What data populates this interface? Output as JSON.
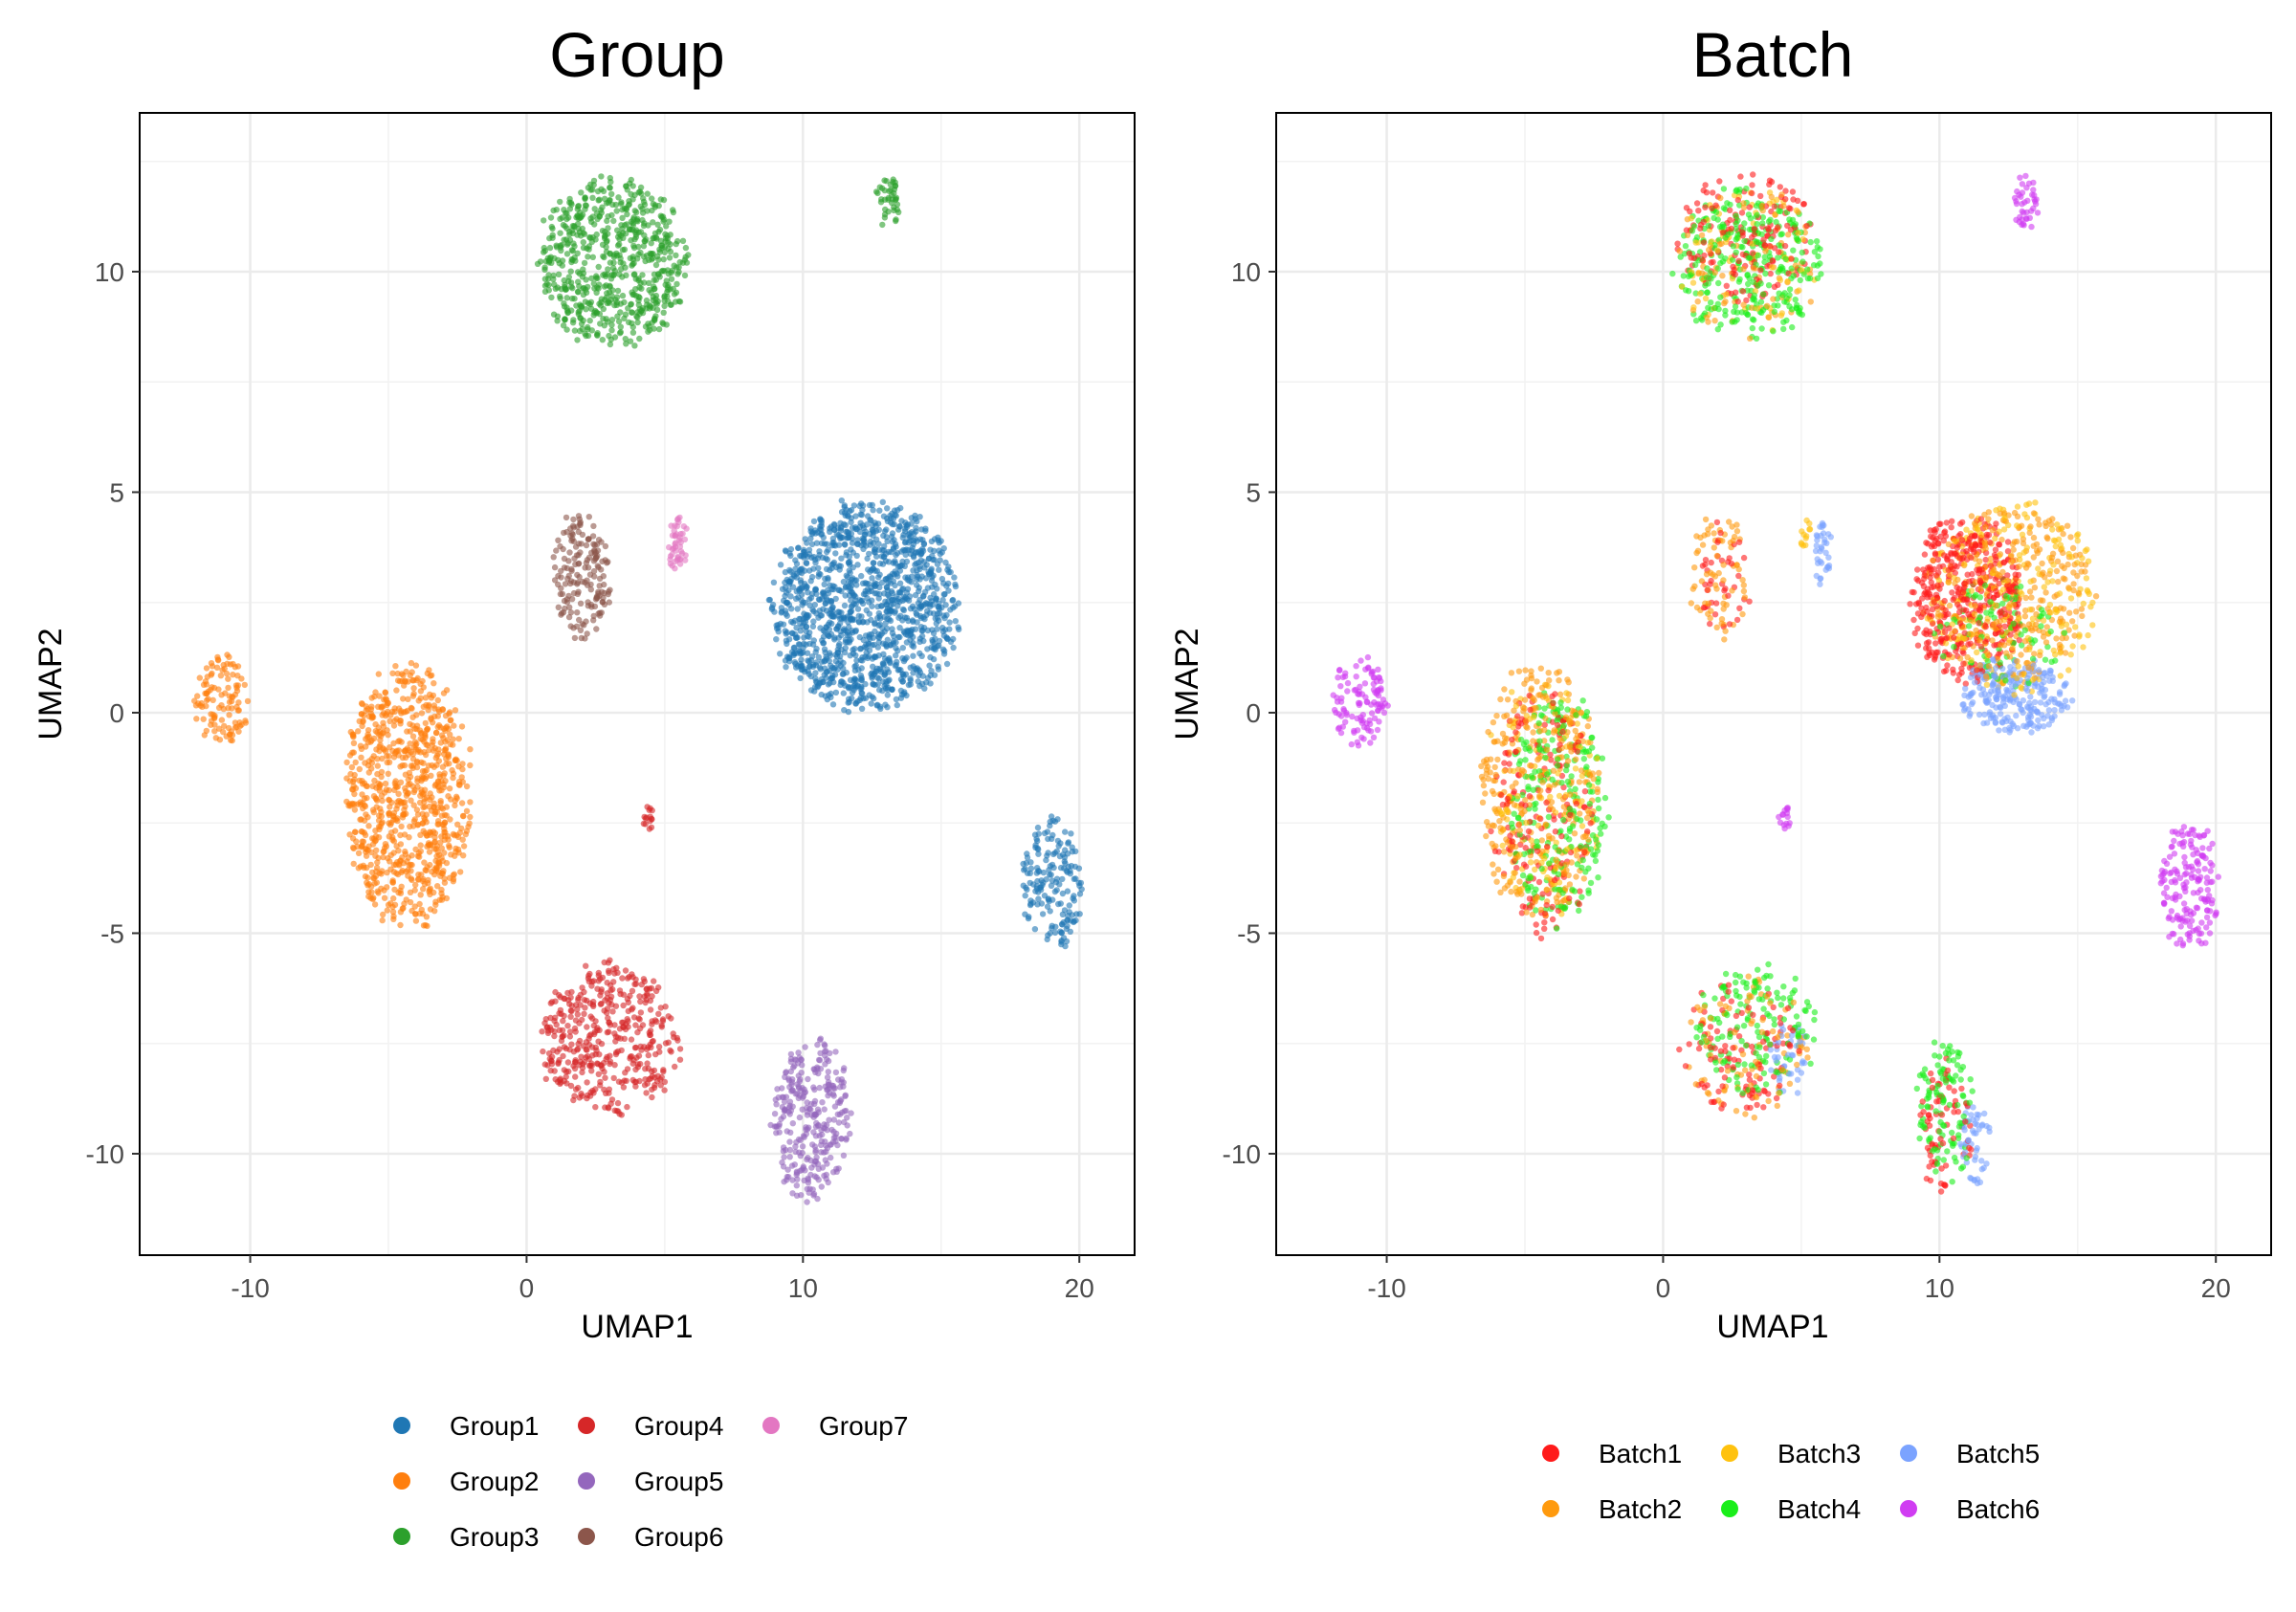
{
  "chart_data": [
    {
      "type": "scatter",
      "title": "Group",
      "xlabel": "UMAP1",
      "ylabel": "UMAP2",
      "xlim": [
        -14,
        22
      ],
      "ylim": [
        -12.3,
        13.6
      ],
      "xticks": [
        -10,
        0,
        10,
        20
      ],
      "xtick_labels": [
        "-10",
        "0",
        "10",
        "20"
      ],
      "yticks": [
        -10,
        -5,
        0,
        5,
        10
      ],
      "ytick_labels": [
        "-10",
        "-5",
        "0",
        "5",
        "10"
      ],
      "grid": true,
      "legend_position": "bottom",
      "legend_columns": 3,
      "series": [
        {
          "name": "Group1",
          "color": "#1f77b4",
          "clusters": [
            {
              "center": [
                12.3,
                2.4
              ],
              "radius": [
                3.6,
                2.5
              ],
              "count": 1300
            },
            {
              "center": [
                19.0,
                -3.9
              ],
              "radius": [
                1.2,
                1.6
              ],
              "count": 170
            }
          ]
        },
        {
          "name": "Group2",
          "color": "#ff7f0e",
          "clusters": [
            {
              "center": [
                -4.3,
                -1.9
              ],
              "radius": [
                2.4,
                3.2
              ],
              "count": 850
            },
            {
              "center": [
                -11.0,
                0.3
              ],
              "radius": [
                1.1,
                1.1
              ],
              "count": 110
            }
          ]
        },
        {
          "name": "Group3",
          "color": "#2ca02c",
          "clusters": [
            {
              "center": [
                3.1,
                10.2
              ],
              "radius": [
                2.9,
                2.0
              ],
              "count": 650
            },
            {
              "center": [
                13.1,
                11.6
              ],
              "radius": [
                0.5,
                0.7
              ],
              "count": 40
            }
          ]
        },
        {
          "name": "Group4",
          "color": "#d62728",
          "clusters": [
            {
              "center": [
                3.0,
                -7.4
              ],
              "radius": [
                2.7,
                1.8
              ],
              "count": 420
            },
            {
              "center": [
                4.4,
                -2.4
              ],
              "radius": [
                0.25,
                0.3
              ],
              "count": 15
            }
          ]
        },
        {
          "name": "Group5",
          "color": "#9467bd",
          "clusters": [
            {
              "center": [
                10.3,
                -9.2
              ],
              "radius": [
                1.5,
                2.0
              ],
              "count": 300
            }
          ]
        },
        {
          "name": "Group6",
          "color": "#8c564b",
          "clusters": [
            {
              "center": [
                2.0,
                3.1
              ],
              "radius": [
                1.1,
                1.6
              ],
              "count": 170
            }
          ]
        },
        {
          "name": "Group7",
          "color": "#e377c2",
          "clusters": [
            {
              "center": [
                5.5,
                3.8
              ],
              "radius": [
                0.4,
                0.7
              ],
              "count": 45
            }
          ]
        }
      ]
    },
    {
      "type": "scatter",
      "title": "Batch",
      "xlabel": "UMAP1",
      "ylabel": "UMAP2",
      "xlim": [
        -14,
        22
      ],
      "ylim": [
        -12.3,
        13.6
      ],
      "xticks": [
        -10,
        0,
        10,
        20
      ],
      "xtick_labels": [
        "-10",
        "0",
        "10",
        "20"
      ],
      "yticks": [
        -10,
        -5,
        0,
        5,
        10
      ],
      "ytick_labels": [
        "-10",
        "-5",
        "0",
        "5",
        "10"
      ],
      "grid": true,
      "legend_position": "bottom",
      "legend_columns": 3,
      "series": [
        {
          "name": "Batch1",
          "color": "#ff1a1a",
          "clusters": [
            {
              "center": [
                11.0,
                2.6
              ],
              "radius": [
                2.2,
                2.0
              ],
              "count": 420
            },
            {
              "center": [
                3.0,
                10.8
              ],
              "radius": [
                2.6,
                1.6
              ],
              "count": 160
            },
            {
              "center": [
                -4.3,
                -2.2
              ],
              "radius": [
                2.0,
                3.0
              ],
              "count": 180
            },
            {
              "center": [
                2.8,
                -7.6
              ],
              "radius": [
                2.3,
                1.6
              ],
              "count": 110
            },
            {
              "center": [
                10.2,
                -9.4
              ],
              "radius": [
                1.1,
                1.6
              ],
              "count": 70
            },
            {
              "center": [
                2.2,
                3.0
              ],
              "radius": [
                1.0,
                1.4
              ],
              "count": 40
            }
          ]
        },
        {
          "name": "Batch2",
          "color": "#ff9a0e",
          "clusters": [
            {
              "center": [
                -4.5,
                -1.8
              ],
              "radius": [
                2.3,
                3.1
              ],
              "count": 340
            },
            {
              "center": [
                12.5,
                2.7
              ],
              "radius": [
                3.2,
                2.2
              ],
              "count": 320
            },
            {
              "center": [
                2.0,
                3.1
              ],
              "radius": [
                1.1,
                1.6
              ],
              "count": 70
            },
            {
              "center": [
                3.0,
                -7.6
              ],
              "radius": [
                2.4,
                1.7
              ],
              "count": 90
            },
            {
              "center": [
                3.0,
                10.2
              ],
              "radius": [
                2.7,
                1.9
              ],
              "count": 80
            }
          ]
        },
        {
          "name": "Batch3",
          "color": "#ffc20e",
          "clusters": [
            {
              "center": [
                12.6,
                2.6
              ],
              "radius": [
                3.3,
                2.4
              ],
              "count": 200
            },
            {
              "center": [
                -4.3,
                -1.9
              ],
              "radius": [
                2.2,
                3.0
              ],
              "count": 110
            },
            {
              "center": [
                3.0,
                10.2
              ],
              "radius": [
                2.7,
                1.9
              ],
              "count": 70
            },
            {
              "center": [
                5.2,
                4.1
              ],
              "radius": [
                0.3,
                0.4
              ],
              "count": 12
            }
          ]
        },
        {
          "name": "Batch4",
          "color": "#1aee1a",
          "clusters": [
            {
              "center": [
                3.1,
                10.2
              ],
              "radius": [
                2.8,
                1.9
              ],
              "count": 300
            },
            {
              "center": [
                -3.8,
                -2.1
              ],
              "radius": [
                1.9,
                2.8
              ],
              "count": 230
            },
            {
              "center": [
                3.4,
                -7.2
              ],
              "radius": [
                2.3,
                1.6
              ],
              "count": 150
            },
            {
              "center": [
                10.2,
                -9.0
              ],
              "radius": [
                1.1,
                1.8
              ],
              "count": 110
            },
            {
              "center": [
                12.3,
                1.8
              ],
              "radius": [
                2.5,
                1.3
              ],
              "count": 90
            }
          ]
        },
        {
          "name": "Batch5",
          "color": "#7ba3ff",
          "clusters": [
            {
              "center": [
                12.7,
                0.4
              ],
              "radius": [
                2.2,
                0.9
              ],
              "count": 240
            },
            {
              "center": [
                5.8,
                3.6
              ],
              "radius": [
                0.35,
                0.8
              ],
              "count": 35
            },
            {
              "center": [
                4.6,
                -7.8
              ],
              "radius": [
                0.8,
                0.9
              ],
              "count": 40
            },
            {
              "center": [
                11.3,
                -9.8
              ],
              "radius": [
                0.6,
                1.0
              ],
              "count": 50
            }
          ]
        },
        {
          "name": "Batch6",
          "color": "#d03cf2",
          "clusters": [
            {
              "center": [
                -11.0,
                0.3
              ],
              "radius": [
                1.1,
                1.1
              ],
              "count": 110
            },
            {
              "center": [
                19.0,
                -3.9
              ],
              "radius": [
                1.2,
                1.6
              ],
              "count": 170
            },
            {
              "center": [
                13.1,
                11.6
              ],
              "radius": [
                0.5,
                0.7
              ],
              "count": 40
            },
            {
              "center": [
                4.4,
                -2.4
              ],
              "radius": [
                0.25,
                0.3
              ],
              "count": 15
            }
          ]
        }
      ]
    }
  ]
}
